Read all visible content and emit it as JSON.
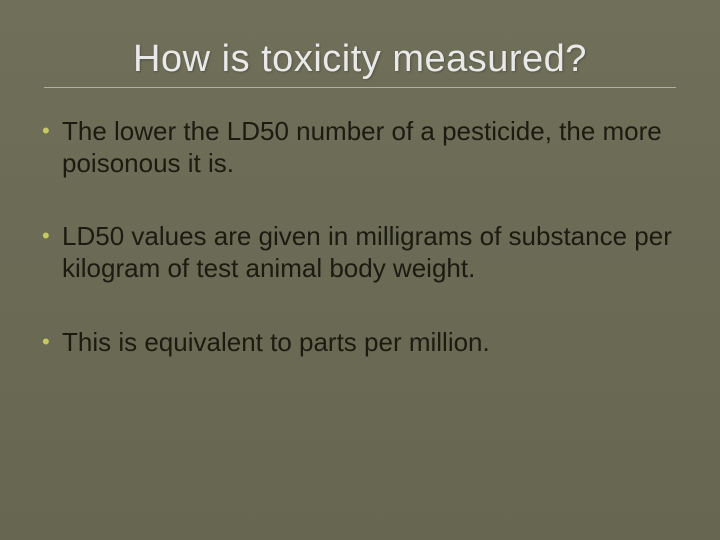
{
  "slide": {
    "title": "How is toxicity measured?",
    "title_color": "#e9e9e9",
    "title_fontsize": 38,
    "background_color": "#6b6b56",
    "bullet_marker_color": "#c7c95d",
    "body_text_color": "#1b1b12",
    "body_fontsize": 26,
    "rule_color": "rgba(255,255,255,0.45)",
    "bullets": [
      "The lower the LD50 number of a pesticide, the more poisonous it is.",
      "LD50 values are given in milligrams of substance per kilogram of test animal body weight.",
      "This is equivalent to parts per million."
    ]
  }
}
